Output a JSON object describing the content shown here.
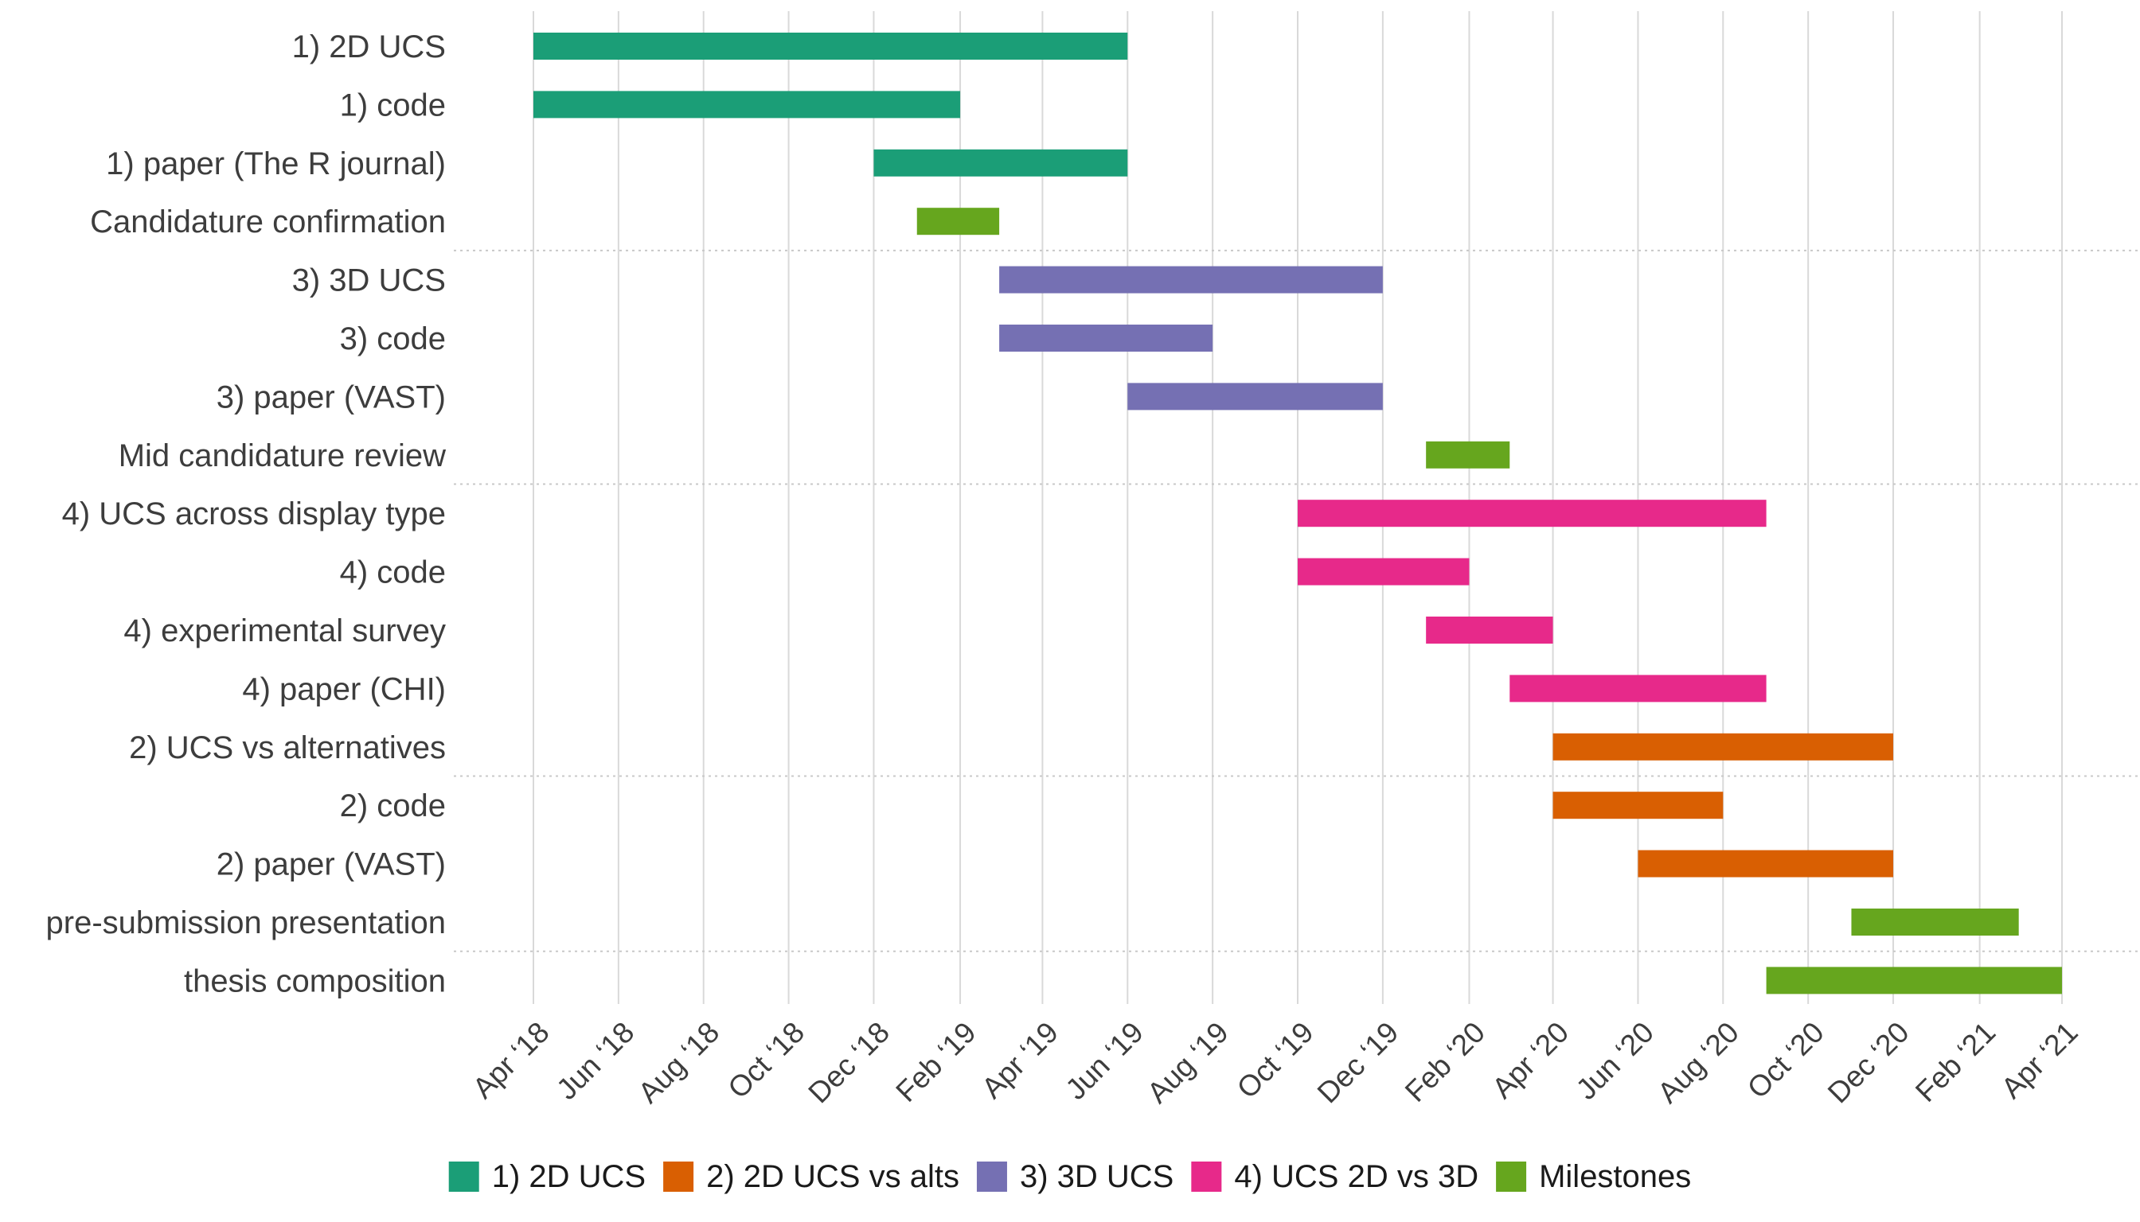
{
  "chart_data": {
    "type": "gantt",
    "x_axis": {
      "range": [
        "2018-04-01",
        "2021-04-01"
      ],
      "ticks": [
        {
          "date": "2018-04-01",
          "label": "Apr ‘18"
        },
        {
          "date": "2018-06-01",
          "label": "Jun ‘18"
        },
        {
          "date": "2018-08-01",
          "label": "Aug ‘18"
        },
        {
          "date": "2018-10-01",
          "label": "Oct ‘18"
        },
        {
          "date": "2018-12-01",
          "label": "Dec ‘18"
        },
        {
          "date": "2019-02-01",
          "label": "Feb ‘19"
        },
        {
          "date": "2019-04-01",
          "label": "Apr ‘19"
        },
        {
          "date": "2019-06-01",
          "label": "Jun ‘19"
        },
        {
          "date": "2019-08-01",
          "label": "Aug ‘19"
        },
        {
          "date": "2019-10-01",
          "label": "Oct ‘19"
        },
        {
          "date": "2019-12-01",
          "label": "Dec ‘19"
        },
        {
          "date": "2020-02-01",
          "label": "Feb ‘20"
        },
        {
          "date": "2020-04-01",
          "label": "Apr ‘20"
        },
        {
          "date": "2020-06-01",
          "label": "Jun ‘20"
        },
        {
          "date": "2020-08-01",
          "label": "Aug ‘20"
        },
        {
          "date": "2020-10-01",
          "label": "Oct ‘20"
        },
        {
          "date": "2020-12-01",
          "label": "Dec ‘20"
        },
        {
          "date": "2021-02-01",
          "label": "Feb ‘21"
        },
        {
          "date": "2021-04-01",
          "label": "Apr ‘21"
        }
      ],
      "grid": true
    },
    "groups": [
      {
        "name": "1) 2D UCS",
        "color": "#1b9e77"
      },
      {
        "name": "2) 2D UCS vs alts",
        "color": "#d95f02"
      },
      {
        "name": "3) 3D UCS",
        "color": "#7570b3"
      },
      {
        "name": "4) UCS 2D vs 3D",
        "color": "#e7298a"
      },
      {
        "name": "Milestones",
        "color": "#66a61e"
      }
    ],
    "tasks": [
      {
        "label": "1) 2D UCS",
        "group": "1) 2D UCS",
        "start": "2018-04-01",
        "end": "2019-06-01"
      },
      {
        "label": "1) code",
        "group": "1) 2D UCS",
        "start": "2018-04-01",
        "end": "2019-02-01"
      },
      {
        "label": "1) paper (The R journal)",
        "group": "1) 2D UCS",
        "start": "2018-12-01",
        "end": "2019-06-01"
      },
      {
        "label": "Candidature confirmation",
        "group": "Milestones",
        "start": "2019-01-01",
        "end": "2019-03-01"
      },
      {
        "label": "3) 3D UCS",
        "group": "3) 3D UCS",
        "start": "2019-03-01",
        "end": "2019-12-01"
      },
      {
        "label": "3) code",
        "group": "3) 3D UCS",
        "start": "2019-03-01",
        "end": "2019-08-01"
      },
      {
        "label": "3) paper (VAST)",
        "group": "3) 3D UCS",
        "start": "2019-06-01",
        "end": "2019-12-01"
      },
      {
        "label": "Mid candidature review",
        "group": "Milestones",
        "start": "2020-01-01",
        "end": "2020-03-01"
      },
      {
        "label": "4) UCS across display type",
        "group": "4) UCS 2D vs 3D",
        "start": "2019-10-01",
        "end": "2020-09-01"
      },
      {
        "label": "4) code",
        "group": "4) UCS 2D vs 3D",
        "start": "2019-10-01",
        "end": "2020-02-01"
      },
      {
        "label": "4) experimental survey",
        "group": "4) UCS 2D vs 3D",
        "start": "2020-01-01",
        "end": "2020-04-01"
      },
      {
        "label": "4) paper (CHI)",
        "group": "4) UCS 2D vs 3D",
        "start": "2020-03-01",
        "end": "2020-09-01"
      },
      {
        "label": "2) UCS vs alternatives",
        "group": "2) 2D UCS vs alts",
        "start": "2020-04-01",
        "end": "2020-12-01"
      },
      {
        "label": "2) code",
        "group": "2) 2D UCS vs alts",
        "start": "2020-04-01",
        "end": "2020-08-01"
      },
      {
        "label": "2) paper (VAST)",
        "group": "2) 2D UCS vs alts",
        "start": "2020-06-01",
        "end": "2020-12-01"
      },
      {
        "label": "pre-submission presentation",
        "group": "Milestones",
        "start": "2020-11-01",
        "end": "2021-03-01"
      },
      {
        "label": "thesis composition",
        "group": "Milestones",
        "start": "2020-09-01",
        "end": "2021-04-01"
      }
    ],
    "row_separators_after": [
      3,
      7,
      12,
      15
    ],
    "legend": {
      "position": "bottom"
    }
  }
}
